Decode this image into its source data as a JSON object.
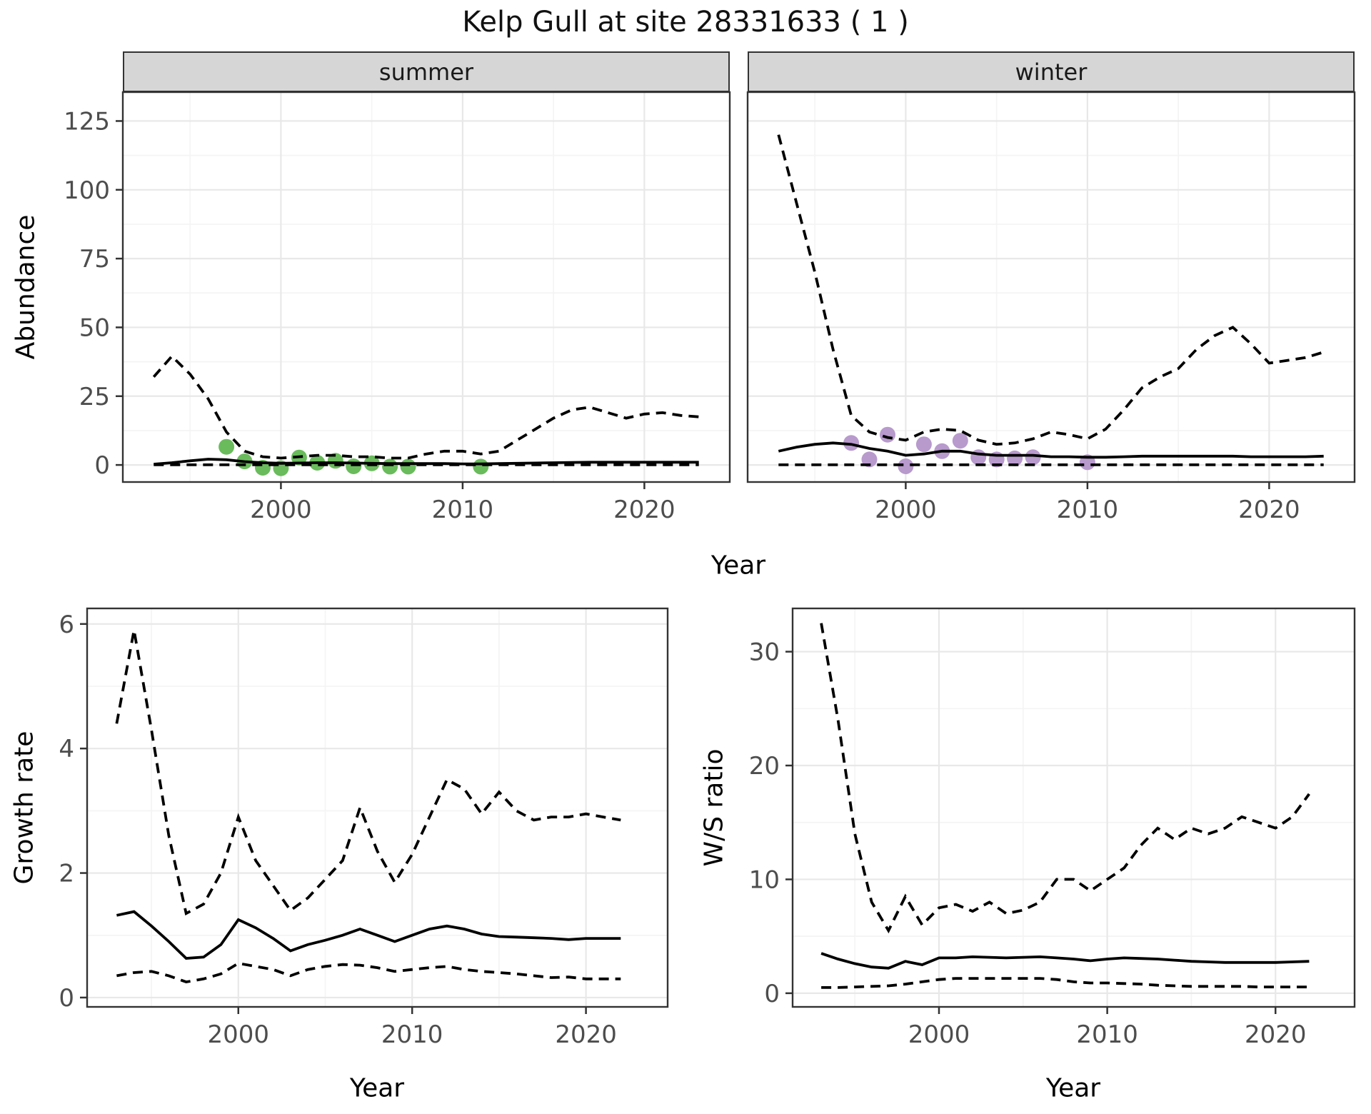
{
  "title": "Kelp Gull at site 28331633 ( 1 )",
  "shared_x_label": "Year",
  "colors": {
    "summer_points": "#6ABB5C",
    "winter_points": "#B89ACD",
    "line": "#000000",
    "panel_border": "#333333",
    "grid_major": "#E8E8E8",
    "grid_minor": "#F4F4F4",
    "strip_bg": "#D6D6D6",
    "tick_label": "#4D4D4D"
  },
  "chart_data": [
    {
      "id": "summer",
      "type": "line",
      "facet_label": "summer",
      "ylabel": "Abundance",
      "xlabel": "Year",
      "x_range": [
        1991.3,
        2024.7
      ],
      "y_range": [
        -6.2,
        135.5
      ],
      "x_ticks": [
        2000,
        2010,
        2020
      ],
      "x_minor": [
        1995,
        2005,
        2015
      ],
      "y_ticks": [
        0,
        25,
        50,
        75,
        100,
        125
      ],
      "y_minor": [
        12.5,
        37.5,
        62.5,
        87.5,
        112.5
      ],
      "show_y_tick_labels": true,
      "grid": true,
      "years": [
        1993,
        1994,
        1995,
        1996,
        1997,
        1998,
        1999,
        2000,
        2001,
        2002,
        2003,
        2004,
        2005,
        2006,
        2007,
        2008,
        2009,
        2010,
        2011,
        2012,
        2013,
        2014,
        2015,
        2016,
        2017,
        2018,
        2019,
        2020,
        2021,
        2022,
        2023
      ],
      "series": [
        {
          "name": "upper_ci",
          "style": "dashed",
          "values": [
            32,
            39.5,
            33,
            24,
            12,
            5,
            3,
            2.5,
            3,
            3.5,
            3.5,
            3,
            3,
            2.5,
            2.5,
            4,
            5,
            5,
            4,
            5,
            9,
            13,
            17,
            20,
            21,
            19,
            17,
            18.5,
            19,
            18,
            17.5
          ]
        },
        {
          "name": "lower_ci",
          "style": "dashed",
          "values": [
            0.05,
            0.05,
            0.05,
            0.05,
            0.05,
            0.05,
            0.05,
            0.05,
            0.05,
            0.05,
            0.05,
            0.05,
            0.05,
            0.05,
            0.05,
            0.05,
            0.05,
            0.05,
            0.05,
            0.05,
            0.05,
            0.05,
            0.05,
            0.05,
            0.05,
            0.05,
            0.05,
            0.05,
            0.05,
            0.05,
            0.05
          ]
        },
        {
          "name": "median",
          "style": "solid",
          "values": [
            0.3,
            0.8,
            1.5,
            2.1,
            1.9,
            1.2,
            0.8,
            0.6,
            0.7,
            0.8,
            0.8,
            0.7,
            0.6,
            0.5,
            0.5,
            0.5,
            0.5,
            0.4,
            0.4,
            0.5,
            0.6,
            0.7,
            0.8,
            0.9,
            1.0,
            1.0,
            1.0,
            1.0,
            1.0,
            1.0,
            1.0
          ]
        }
      ],
      "points": {
        "name": "observed-counts-summer",
        "color_key": "summer_points",
        "data": [
          [
            1997,
            6.6
          ],
          [
            1998,
            1.3
          ],
          [
            1999,
            -1.0
          ],
          [
            2000,
            -1.2
          ],
          [
            2001,
            2.7
          ],
          [
            2002,
            0.8
          ],
          [
            2003,
            1.5
          ],
          [
            2004,
            -0.5
          ],
          [
            2005,
            0.6
          ],
          [
            2006,
            -0.6
          ],
          [
            2007,
            -0.6
          ],
          [
            2011,
            -0.6
          ]
        ]
      }
    },
    {
      "id": "winter",
      "type": "line",
      "facet_label": "winter",
      "ylabel": "Abundance",
      "xlabel": "Year",
      "x_range": [
        1991.3,
        2024.7
      ],
      "y_range": [
        -6.2,
        135.5
      ],
      "x_ticks": [
        2000,
        2010,
        2020
      ],
      "x_minor": [
        1995,
        2005,
        2015
      ],
      "y_ticks": [
        0,
        25,
        50,
        75,
        100,
        125
      ],
      "y_minor": [
        12.5,
        37.5,
        62.5,
        87.5,
        112.5
      ],
      "show_y_tick_labels": false,
      "grid": true,
      "years": [
        1993,
        1994,
        1995,
        1996,
        1997,
        1998,
        1999,
        2000,
        2001,
        2002,
        2003,
        2004,
        2005,
        2006,
        2007,
        2008,
        2009,
        2010,
        2011,
        2012,
        2013,
        2014,
        2015,
        2016,
        2017,
        2018,
        2019,
        2020,
        2021,
        2022,
        2023
      ],
      "series": [
        {
          "name": "upper_ci",
          "style": "dashed",
          "values": [
            120,
            95,
            70,
            42,
            18,
            12,
            10,
            9,
            12,
            13,
            12.5,
            9,
            7.5,
            8,
            9.5,
            12,
            11,
            9.5,
            13,
            20,
            28,
            32,
            35,
            42,
            47,
            50,
            44,
            37,
            38,
            39,
            41
          ]
        },
        {
          "name": "lower_ci",
          "style": "dashed",
          "values": [
            0.05,
            0.05,
            0.05,
            0.05,
            0.05,
            0.05,
            0.05,
            0.05,
            0.05,
            0.05,
            0.05,
            0.05,
            0.05,
            0.05,
            0.05,
            0.05,
            0.05,
            0.05,
            0.05,
            0.05,
            0.05,
            0.05,
            0.05,
            0.05,
            0.05,
            0.05,
            0.05,
            0.05,
            0.05,
            0.05,
            0.05
          ]
        },
        {
          "name": "median",
          "style": "solid",
          "values": [
            5,
            6.5,
            7.5,
            8,
            7.5,
            6,
            5,
            3.5,
            4,
            5,
            5,
            4,
            3.5,
            3.5,
            3.5,
            3,
            3,
            2.8,
            2.8,
            3,
            3.2,
            3.2,
            3.2,
            3.2,
            3.2,
            3.2,
            3,
            3,
            3,
            3,
            3.2
          ]
        }
      ],
      "points": {
        "name": "observed-counts-winter",
        "color_key": "winter_points",
        "data": [
          [
            1997,
            8
          ],
          [
            1998,
            2
          ],
          [
            1999,
            11
          ],
          [
            2000,
            -0.5
          ],
          [
            2001,
            7.5
          ],
          [
            2002,
            5
          ],
          [
            2003,
            8.8
          ],
          [
            2004,
            2.8
          ],
          [
            2005,
            2
          ],
          [
            2006,
            2.4
          ],
          [
            2007,
            2.8
          ],
          [
            2010,
            1
          ]
        ]
      }
    },
    {
      "id": "growth",
      "type": "line",
      "facet_label": "",
      "ylabel": "Growth rate",
      "xlabel": "Year",
      "x_range": [
        1991.3,
        2024.7
      ],
      "y_range": [
        -0.15,
        6.25
      ],
      "x_ticks": [
        2000,
        2010,
        2020
      ],
      "x_minor": [
        1995,
        2005,
        2015
      ],
      "y_ticks": [
        0,
        2,
        4,
        6
      ],
      "y_minor": [
        1,
        3,
        5
      ],
      "show_y_tick_labels": true,
      "grid": true,
      "years": [
        1993,
        1994,
        1995,
        1996,
        1997,
        1998,
        1999,
        2000,
        2001,
        2002,
        2003,
        2004,
        2005,
        2006,
        2007,
        2008,
        2009,
        2010,
        2011,
        2012,
        2013,
        2014,
        2015,
        2016,
        2017,
        2018,
        2019,
        2020,
        2021,
        2022
      ],
      "series": [
        {
          "name": "upper_ci",
          "style": "dashed",
          "values": [
            4.4,
            5.9,
            4.3,
            2.6,
            1.35,
            1.5,
            2.0,
            2.9,
            2.2,
            1.8,
            1.4,
            1.6,
            1.9,
            2.2,
            3.05,
            2.35,
            1.85,
            2.3,
            2.9,
            3.5,
            3.35,
            2.95,
            3.3,
            3.0,
            2.85,
            2.9,
            2.9,
            2.95,
            2.9,
            2.85
          ]
        },
        {
          "name": "lower_ci",
          "style": "dashed",
          "values": [
            0.35,
            0.4,
            0.42,
            0.35,
            0.25,
            0.3,
            0.38,
            0.55,
            0.5,
            0.45,
            0.35,
            0.45,
            0.5,
            0.53,
            0.52,
            0.48,
            0.42,
            0.45,
            0.48,
            0.5,
            0.45,
            0.42,
            0.4,
            0.38,
            0.35,
            0.32,
            0.33,
            0.3,
            0.3,
            0.3
          ]
        },
        {
          "name": "median",
          "style": "solid",
          "values": [
            1.32,
            1.38,
            1.15,
            0.9,
            0.63,
            0.65,
            0.85,
            1.25,
            1.12,
            0.95,
            0.75,
            0.85,
            0.92,
            1.0,
            1.1,
            1.0,
            0.9,
            1.0,
            1.1,
            1.15,
            1.1,
            1.02,
            0.98,
            0.97,
            0.96,
            0.95,
            0.93,
            0.95,
            0.95,
            0.95
          ]
        }
      ],
      "points": null
    },
    {
      "id": "ws",
      "type": "line",
      "facet_label": "",
      "ylabel": "W/S ratio",
      "xlabel": "Year",
      "x_range": [
        1991.3,
        2024.7
      ],
      "y_range": [
        -1.2,
        33.8
      ],
      "x_ticks": [
        2000,
        2010,
        2020
      ],
      "x_minor": [
        1995,
        2005,
        2015
      ],
      "y_ticks": [
        0,
        10,
        20,
        30
      ],
      "y_minor": [
        5,
        15,
        25
      ],
      "show_y_tick_labels": true,
      "grid": true,
      "years": [
        1993,
        1994,
        1995,
        1996,
        1997,
        1998,
        1999,
        2000,
        2001,
        2002,
        2003,
        2004,
        2005,
        2006,
        2007,
        2008,
        2009,
        2010,
        2011,
        2012,
        2013,
        2014,
        2015,
        2016,
        2017,
        2018,
        2019,
        2020,
        2021,
        2022
      ],
      "series": [
        {
          "name": "upper_ci",
          "style": "dashed",
          "values": [
            32.5,
            24,
            14,
            8,
            5.5,
            8.5,
            6.0,
            7.5,
            7.8,
            7.2,
            8.0,
            7.0,
            7.3,
            8.0,
            10,
            10,
            9.0,
            10,
            11,
            13,
            14.5,
            13.5,
            14.5,
            14,
            14.5,
            15.5,
            15,
            14.5,
            15.5,
            17.5
          ]
        },
        {
          "name": "lower_ci",
          "style": "dashed",
          "values": [
            0.5,
            0.5,
            0.55,
            0.6,
            0.65,
            0.8,
            1.0,
            1.2,
            1.3,
            1.3,
            1.3,
            1.3,
            1.3,
            1.3,
            1.2,
            1.0,
            0.9,
            0.9,
            0.85,
            0.8,
            0.7,
            0.65,
            0.6,
            0.6,
            0.6,
            0.6,
            0.55,
            0.55,
            0.55,
            0.55
          ]
        },
        {
          "name": "median",
          "style": "solid",
          "values": [
            3.5,
            3.0,
            2.6,
            2.3,
            2.2,
            2.8,
            2.5,
            3.1,
            3.1,
            3.2,
            3.15,
            3.1,
            3.15,
            3.2,
            3.1,
            3.0,
            2.85,
            3.0,
            3.1,
            3.05,
            3.0,
            2.9,
            2.8,
            2.75,
            2.7,
            2.7,
            2.7,
            2.7,
            2.75,
            2.8
          ]
        }
      ],
      "points": null
    }
  ]
}
